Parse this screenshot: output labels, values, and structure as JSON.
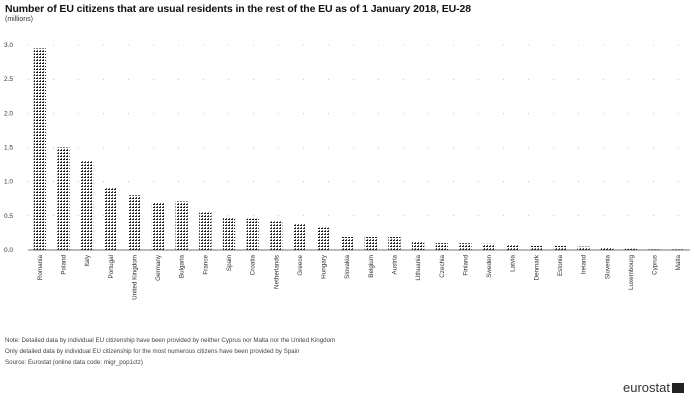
{
  "chart_data": {
    "type": "bar",
    "title": "Number of EU citizens that are usual residents in the rest of the EU as of 1 January 2018, EU-28",
    "unit": "(millions)",
    "ylim": [
      0,
      3.0
    ],
    "yticks": [
      "0.0",
      "0.5",
      "1.0",
      "1.5",
      "2.0",
      "2.5",
      "3.0"
    ],
    "grid": "dotted-horizontal",
    "categories": [
      "Romania",
      "Poland",
      "Italy",
      "Portugal",
      "United Kingdom",
      "Germany",
      "Bulgaria",
      "France",
      "Spain",
      "Croatia",
      "Netherlands",
      "Greece",
      "Hungary",
      "Slovakia",
      "Belgium",
      "Austria",
      "Lithuania",
      "Czechia",
      "Finland",
      "Sweden",
      "Latvia",
      "Denmark",
      "Estonia",
      "Ireland",
      "Slovenia",
      "Luxembourg",
      "Cyprus",
      "Malta"
    ],
    "values": [
      2.95,
      1.5,
      1.3,
      0.92,
      0.8,
      0.7,
      0.71,
      0.55,
      0.47,
      0.46,
      0.42,
      0.38,
      0.33,
      0.19,
      0.19,
      0.19,
      0.13,
      0.1,
      0.1,
      0.09,
      0.07,
      0.06,
      0.06,
      0.05,
      0.04,
      0.02,
      0.01,
      0.01
    ]
  },
  "notes": [
    "Note: Detailed data by individual EU citizenship have been provided by neither Cyprus nor Malta nor the United Kingdom",
    "Only detailed data by individual EU citizenship for the most numerous citizens have been provided by Spain",
    "Source: Eurostat (online data code: migr_pop1ctz)"
  ],
  "brand": "eurostat"
}
